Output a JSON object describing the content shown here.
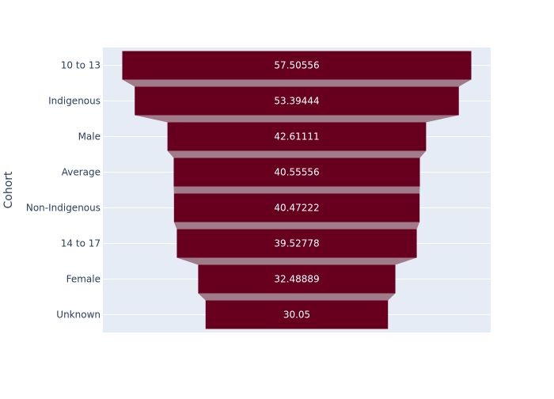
{
  "chart_data": {
    "type": "funnel",
    "title": "",
    "xlabel": "",
    "ylabel": "Cohort",
    "categories": [
      "10 to 13",
      "Indigenous",
      "Male",
      "Average",
      "Non-Indigenous",
      "14 to 17",
      "Female",
      "Unknown"
    ],
    "values": [
      57.50556,
      53.39444,
      42.61111,
      40.55556,
      40.47222,
      39.52778,
      32.48889,
      30.05
    ],
    "value_labels": [
      "57.50556",
      "53.39444",
      "42.61111",
      "40.55556",
      "40.47222",
      "39.52778",
      "32.48889",
      "30.05"
    ],
    "grid": true,
    "legend": "none",
    "colors": {
      "bar": "#67001f",
      "connector": "#a07b8a",
      "plot_bg": "#e5ecf6",
      "gridline": "#ffffff",
      "text": "#2a3f5f",
      "data_label": "#ffffff"
    }
  }
}
